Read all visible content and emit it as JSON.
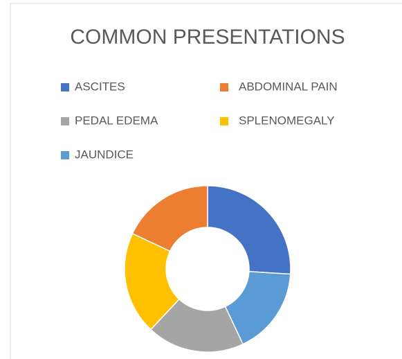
{
  "chart_data": {
    "type": "donut",
    "title": "COMMON PRESENTATIONS",
    "categories": [
      "ASCITES",
      "JAUNDICE",
      "PEDAL EDEMA",
      "SPLENOMEGALY",
      "ABDOMINAL PAIN"
    ],
    "values": [
      26,
      17,
      19,
      20,
      18
    ],
    "colors": [
      "#4472c4",
      "#5b9bd5",
      "#a5a5a5",
      "#ffc000",
      "#ed7d31"
    ],
    "legend": "top"
  }
}
